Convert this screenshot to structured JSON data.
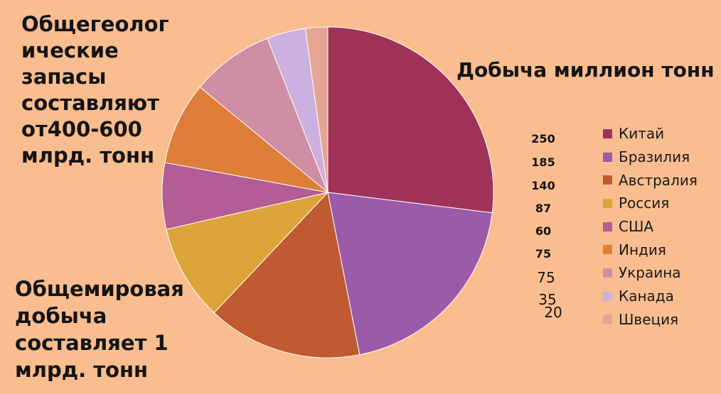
{
  "left_title_lines": [
    "Общегеолог",
    "ические",
    "запасы",
    "составляют",
    "от400-600",
    "млрд. тонн"
  ],
  "left_bottom_lines": [
    "Общемировая",
    "добыча",
    "составляет 1",
    "млрд. тонн"
  ],
  "chart_data": {
    "type": "pie",
    "title": "Добыча миллион тонн",
    "legend_position": "right",
    "categories": [
      "Китай",
      "Бразилия",
      "Австралия",
      "Россия",
      "США",
      "Индия",
      "Украина",
      "Канада",
      "Швеция"
    ],
    "values": [
      250,
      185,
      140,
      87,
      60,
      75,
      75,
      35,
      20
    ],
    "value_labels": [
      "250",
      "185",
      "140",
      "87",
      "60",
      "75",
      "75",
      "35",
      "20"
    ],
    "colors": [
      "#a0325a",
      "#9b5ba8",
      "#c05a30",
      "#dda43a",
      "#b35c96",
      "#de7e38",
      "#cf8ea3",
      "#ccb0df",
      "#e5a595"
    ]
  }
}
